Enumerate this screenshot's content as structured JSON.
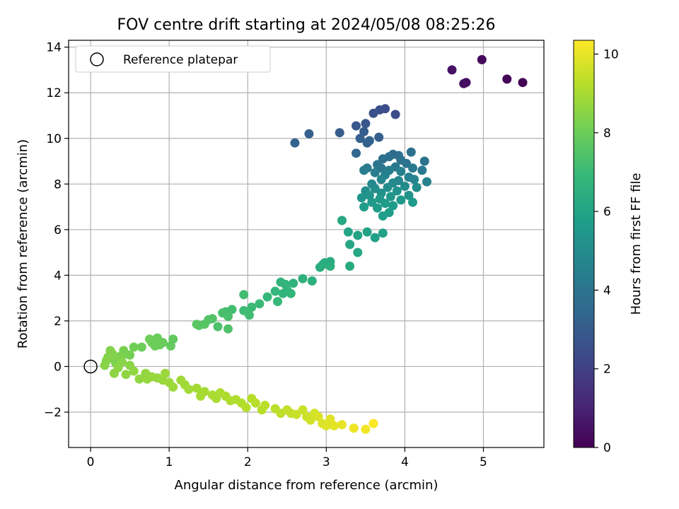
{
  "chart_data": {
    "type": "scatter",
    "title": "FOV centre drift starting at 2024/05/08 08:25:26",
    "xlabel": "Angular distance from reference (arcmin)",
    "ylabel": "Rotation from reference (arcmin)",
    "xlim": [
      -0.28,
      5.77
    ],
    "ylim": [
      -3.55,
      14.3
    ],
    "xticks": [
      0,
      1,
      2,
      3,
      4,
      5
    ],
    "yticks": [
      -2,
      0,
      2,
      4,
      6,
      8,
      10,
      12,
      14
    ],
    "xtick_labels": [
      "0",
      "1",
      "2",
      "3",
      "4",
      "5"
    ],
    "ytick_labels": [
      "−2",
      "0",
      "2",
      "4",
      "6",
      "8",
      "10",
      "12",
      "14"
    ],
    "grid": true,
    "legend": {
      "placement": "top-left",
      "entries": [
        "Reference platepar"
      ]
    },
    "reference_point": {
      "x": 0,
      "y": 0,
      "label": "Reference platepar",
      "marker": "open-circle"
    },
    "colorbar": {
      "label": "Hours from first FF file",
      "range": [
        0,
        10.35
      ],
      "ticks": [
        0,
        2,
        4,
        6,
        8,
        10
      ],
      "tick_labels": [
        "0",
        "2",
        "4",
        "6",
        "8",
        "10"
      ],
      "colormap": "viridis",
      "stops": [
        "#440154",
        "#482878",
        "#3e4989",
        "#31688e",
        "#26828e",
        "#1f9e89",
        "#35b779",
        "#6ece58",
        "#b5de2b",
        "#fde725"
      ]
    },
    "series": [
      {
        "points": [
          [
            5.5,
            12.45,
            0.05
          ],
          [
            5.3,
            12.6,
            0.15
          ],
          [
            4.98,
            13.45,
            0.25
          ],
          [
            4.78,
            12.45,
            0.35
          ],
          [
            4.75,
            12.4,
            0.4
          ],
          [
            4.6,
            13.0,
            0.5
          ],
          [
            3.88,
            11.05,
            2.4
          ],
          [
            3.75,
            11.3,
            2.5
          ],
          [
            3.68,
            11.25,
            2.55
          ],
          [
            3.6,
            11.1,
            2.6
          ],
          [
            3.5,
            10.65,
            2.75
          ],
          [
            3.38,
            10.55,
            2.85
          ],
          [
            3.17,
            10.25,
            3.05
          ],
          [
            2.78,
            10.2,
            3.2
          ],
          [
            2.6,
            9.8,
            3.3
          ],
          [
            3.48,
            10.3,
            3.0
          ],
          [
            3.67,
            10.05,
            3.1
          ],
          [
            3.43,
            10.0,
            3.15
          ],
          [
            3.52,
            9.8,
            3.2
          ],
          [
            3.55,
            9.9,
            3.25
          ],
          [
            3.38,
            9.35,
            3.4
          ],
          [
            3.85,
            9.3,
            3.6
          ],
          [
            3.92,
            9.25,
            3.7
          ],
          [
            4.08,
            9.4,
            3.75
          ],
          [
            3.72,
            9.1,
            3.8
          ],
          [
            3.8,
            9.2,
            3.85
          ],
          [
            3.95,
            9.05,
            3.9
          ],
          [
            4.02,
            8.9,
            3.95
          ],
          [
            4.25,
            9.0,
            4.0
          ],
          [
            3.65,
            8.85,
            4.05
          ],
          [
            3.7,
            8.7,
            4.1
          ],
          [
            3.88,
            8.75,
            4.15
          ],
          [
            4.1,
            8.7,
            4.2
          ],
          [
            4.22,
            8.6,
            4.25
          ],
          [
            3.52,
            8.7,
            4.3
          ],
          [
            3.48,
            8.6,
            4.35
          ],
          [
            3.62,
            8.5,
            4.4
          ],
          [
            3.8,
            8.6,
            4.45
          ],
          [
            3.95,
            8.55,
            4.5
          ],
          [
            3.75,
            8.4,
            4.55
          ],
          [
            4.05,
            8.3,
            4.6
          ],
          [
            4.28,
            8.1,
            4.65
          ],
          [
            4.12,
            8.2,
            4.7
          ],
          [
            3.92,
            8.15,
            4.75
          ],
          [
            3.7,
            8.2,
            4.8
          ],
          [
            3.58,
            8.0,
            4.85
          ],
          [
            3.85,
            8.05,
            4.9
          ],
          [
            4.0,
            7.9,
            4.95
          ],
          [
            4.15,
            7.85,
            5.0
          ],
          [
            3.78,
            7.85,
            5.05
          ],
          [
            3.62,
            7.8,
            5.1
          ],
          [
            3.5,
            7.7,
            5.15
          ],
          [
            3.7,
            7.6,
            5.2
          ],
          [
            3.9,
            7.7,
            5.25
          ],
          [
            4.05,
            7.5,
            5.3
          ],
          [
            3.55,
            7.5,
            5.35
          ],
          [
            3.45,
            7.4,
            5.4
          ],
          [
            3.82,
            7.45,
            5.45
          ],
          [
            3.68,
            7.35,
            5.5
          ],
          [
            3.95,
            7.3,
            5.55
          ],
          [
            4.1,
            7.2,
            5.6
          ],
          [
            3.58,
            7.2,
            5.62
          ],
          [
            3.75,
            7.15,
            5.65
          ],
          [
            3.85,
            7.05,
            5.68
          ],
          [
            3.48,
            7.0,
            5.7
          ],
          [
            3.65,
            6.95,
            5.72
          ],
          [
            3.8,
            6.75,
            5.75
          ],
          [
            3.72,
            6.6,
            5.78
          ],
          [
            3.62,
            5.65,
            5.85
          ],
          [
            3.72,
            5.85,
            5.9
          ],
          [
            3.52,
            5.9,
            5.95
          ],
          [
            3.4,
            5.75,
            6.0
          ],
          [
            3.28,
            5.9,
            6.05
          ],
          [
            3.3,
            5.35,
            6.1
          ],
          [
            3.4,
            5.0,
            6.15
          ],
          [
            3.2,
            6.4,
            6.2
          ],
          [
            3.3,
            4.4,
            6.3
          ],
          [
            3.05,
            4.6,
            6.35
          ],
          [
            2.98,
            4.55,
            6.4
          ],
          [
            2.95,
            4.45,
            6.42
          ],
          [
            2.92,
            4.35,
            6.45
          ],
          [
            3.05,
            4.4,
            6.48
          ],
          [
            2.82,
            3.75,
            6.55
          ],
          [
            2.7,
            3.85,
            6.6
          ],
          [
            2.58,
            3.65,
            6.65
          ],
          [
            2.48,
            3.6,
            6.7
          ],
          [
            2.42,
            3.7,
            6.72
          ],
          [
            2.5,
            3.35,
            6.75
          ],
          [
            2.45,
            3.2,
            6.78
          ],
          [
            2.55,
            3.2,
            6.8
          ],
          [
            2.35,
            3.3,
            6.85
          ],
          [
            2.25,
            3.05,
            6.9
          ],
          [
            2.38,
            2.85,
            6.95
          ],
          [
            2.15,
            2.75,
            7.0
          ],
          [
            2.05,
            2.6,
            7.05
          ],
          [
            1.95,
            2.45,
            7.1
          ],
          [
            2.02,
            2.25,
            7.15
          ],
          [
            1.95,
            3.15,
            7.18
          ],
          [
            1.8,
            2.5,
            7.2
          ],
          [
            1.72,
            2.4,
            7.25
          ],
          [
            1.68,
            2.35,
            7.3
          ],
          [
            1.75,
            2.2,
            7.32
          ],
          [
            1.62,
            1.75,
            7.4
          ],
          [
            1.75,
            1.65,
            7.45
          ],
          [
            1.55,
            2.1,
            7.5
          ],
          [
            1.5,
            2.05,
            7.55
          ],
          [
            1.45,
            1.85,
            7.6
          ],
          [
            1.38,
            1.8,
            7.62
          ],
          [
            1.35,
            1.85,
            7.65
          ],
          [
            1.05,
            1.2,
            7.8
          ],
          [
            1.02,
            0.9,
            7.85
          ],
          [
            0.92,
            1.05,
            7.9
          ],
          [
            0.88,
            0.95,
            7.92
          ],
          [
            0.85,
            1.25,
            7.95
          ],
          [
            0.82,
            0.9,
            7.98
          ],
          [
            0.78,
            1.05,
            8.0
          ],
          [
            0.75,
            1.2,
            8.02
          ],
          [
            0.65,
            0.85,
            8.05
          ],
          [
            0.55,
            0.85,
            8.1
          ],
          [
            0.5,
            0.5,
            8.15
          ],
          [
            0.45,
            0.55,
            8.2
          ],
          [
            0.42,
            0.7,
            8.22
          ],
          [
            0.38,
            0.45,
            8.25
          ],
          [
            0.35,
            0.35,
            8.28
          ],
          [
            0.32,
            0.15,
            8.3
          ],
          [
            0.3,
            0.3,
            8.32
          ],
          [
            0.28,
            0.55,
            8.35
          ],
          [
            0.25,
            0.7,
            8.38
          ],
          [
            0.22,
            0.4,
            8.4
          ],
          [
            0.2,
            0.25,
            8.42
          ],
          [
            0.18,
            0.05,
            8.45
          ],
          [
            0.4,
            0.2,
            8.48
          ],
          [
            0.5,
            0.05,
            8.5
          ],
          [
            0.35,
            -0.05,
            8.52
          ],
          [
            0.3,
            -0.3,
            8.55
          ],
          [
            0.45,
            -0.35,
            8.58
          ],
          [
            0.55,
            -0.2,
            8.6
          ],
          [
            0.62,
            -0.55,
            8.62
          ],
          [
            0.7,
            -0.3,
            8.65
          ],
          [
            0.72,
            -0.55,
            8.68
          ],
          [
            0.78,
            -0.45,
            8.7
          ],
          [
            0.85,
            -0.5,
            8.72
          ],
          [
            0.92,
            -0.6,
            8.75
          ],
          [
            0.95,
            -0.3,
            8.78
          ],
          [
            1.0,
            -0.7,
            8.8
          ],
          [
            1.05,
            -0.9,
            8.82
          ],
          [
            1.15,
            -0.6,
            8.85
          ],
          [
            1.2,
            -0.8,
            8.88
          ],
          [
            1.25,
            -1.0,
            8.9
          ],
          [
            1.35,
            -0.95,
            8.92
          ],
          [
            1.4,
            -1.3,
            8.95
          ],
          [
            1.45,
            -1.1,
            8.98
          ],
          [
            1.55,
            -1.25,
            9.0
          ],
          [
            1.6,
            -1.4,
            9.02
          ],
          [
            1.65,
            -1.15,
            9.05
          ],
          [
            1.72,
            -1.3,
            9.08
          ],
          [
            1.78,
            -1.5,
            9.1
          ],
          [
            1.85,
            -1.45,
            9.12
          ],
          [
            1.92,
            -1.6,
            9.15
          ],
          [
            1.98,
            -1.8,
            9.18
          ],
          [
            2.05,
            -1.4,
            9.2
          ],
          [
            2.1,
            -1.6,
            9.22
          ],
          [
            2.18,
            -1.9,
            9.25
          ],
          [
            2.22,
            -1.7,
            9.28
          ],
          [
            2.35,
            -1.85,
            9.3
          ],
          [
            2.42,
            -2.05,
            9.35
          ],
          [
            2.5,
            -1.9,
            9.4
          ],
          [
            2.55,
            -2.05,
            9.45
          ],
          [
            2.62,
            -2.1,
            9.5
          ],
          [
            2.7,
            -1.9,
            9.55
          ],
          [
            2.75,
            -2.2,
            9.6
          ],
          [
            2.8,
            -2.35,
            9.65
          ],
          [
            2.85,
            -2.05,
            9.7
          ],
          [
            2.9,
            -2.2,
            9.75
          ],
          [
            2.95,
            -2.5,
            9.8
          ],
          [
            3.0,
            -2.6,
            9.85
          ],
          [
            3.05,
            -2.3,
            9.9
          ],
          [
            3.1,
            -2.6,
            9.95
          ],
          [
            3.2,
            -2.55,
            10.0
          ],
          [
            3.35,
            -2.7,
            10.1
          ],
          [
            3.5,
            -2.75,
            10.2
          ],
          [
            3.6,
            -2.5,
            10.3
          ]
        ]
      }
    ]
  }
}
